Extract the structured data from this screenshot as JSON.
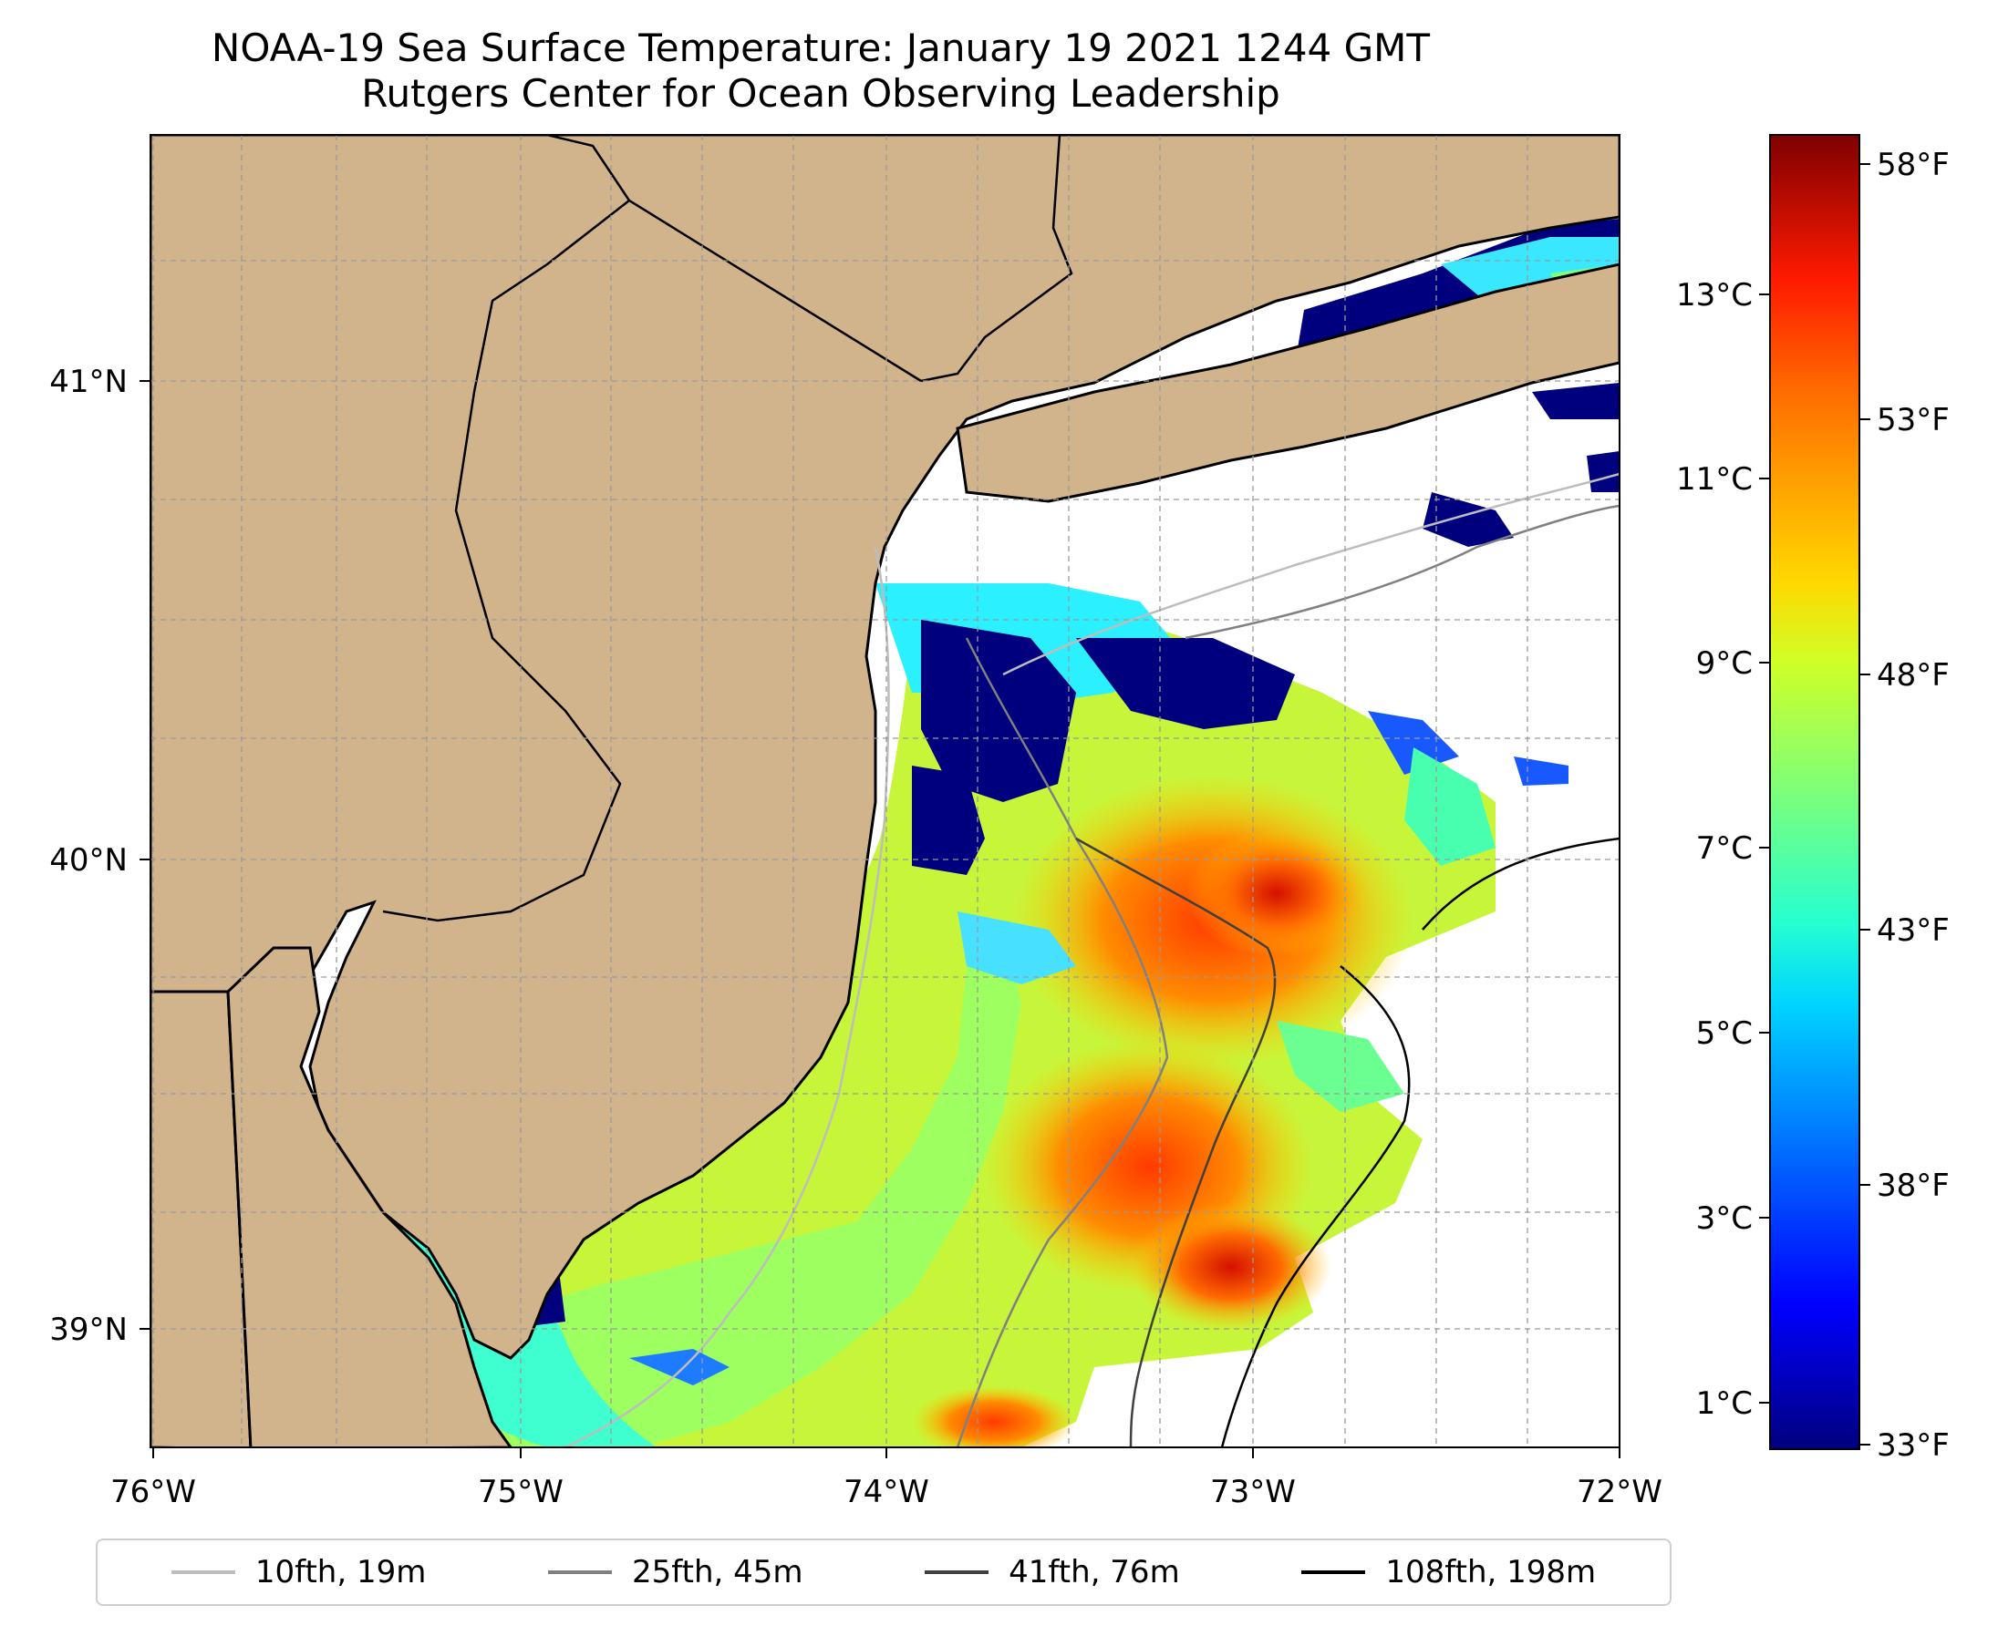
{
  "title": {
    "line1": "NOAA-19 Sea Surface Temperature: January 19 2021 1244 GMT",
    "line2": "Rutgers Center for Ocean Observing Leadership"
  },
  "map": {
    "longitude_ticks": [
      "76°W",
      "75°W",
      "74°W",
      "73°W",
      "72°W"
    ],
    "latitude_ticks": [
      "41°N",
      "40°N",
      "39°N"
    ],
    "extent": {
      "lon_min": -76,
      "lon_max": -72,
      "lat_min": 38.75,
      "lat_max": 41.52
    },
    "land_color": "#d2b48c",
    "coastline_color": "#000000",
    "grid": true
  },
  "colorbar": {
    "colormap": "jet",
    "celsius_ticks": [
      "13°C",
      "11°C",
      "9°C",
      "7°C",
      "5°C",
      "3°C",
      "1°C"
    ],
    "fahrenheit_ticks": [
      "58°F",
      "53°F",
      "48°F",
      "43°F",
      "38°F",
      "33°F"
    ],
    "range_f": [
      33,
      59
    ]
  },
  "legend": [
    {
      "label": "10fth, 19m",
      "color": "#bdbdbd"
    },
    {
      "label": "25fth, 45m",
      "color": "#808080"
    },
    {
      "label": "41fth, 76m",
      "color": "#404040"
    },
    {
      "label": "108fth, 198m",
      "color": "#000000"
    }
  ]
}
